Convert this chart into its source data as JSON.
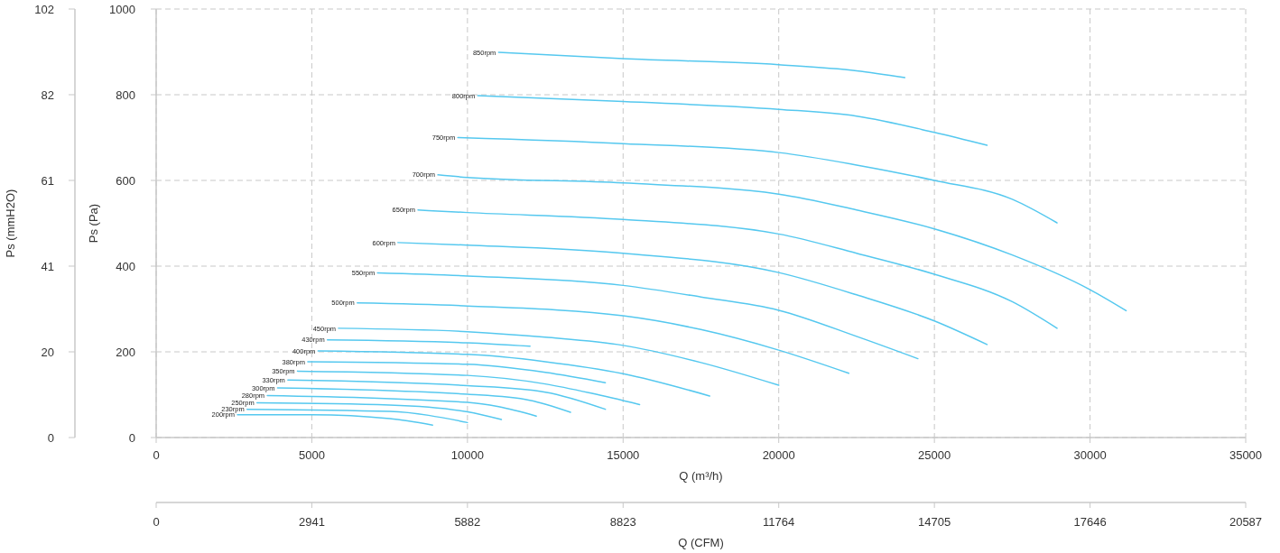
{
  "chart_data": {
    "type": "line",
    "xlabel": "Q (m³/h)",
    "ylabel": "Ps (Pa)",
    "y2label": "Ps (mmH2O)",
    "x2label": "Q (CFM)",
    "xlim": [
      0,
      35000
    ],
    "xticks": [
      0,
      5000,
      10000,
      15000,
      20000,
      25000,
      30000,
      35000
    ],
    "ylim": [
      0,
      1000
    ],
    "yticks": [
      0,
      200,
      400,
      600,
      800,
      1000
    ],
    "y2lim": [
      0,
      101.97
    ],
    "y2ticks": [
      0,
      {
        "value": 20.39,
        "label": "20"
      },
      {
        "value": 40.79,
        "label": "41"
      },
      {
        "value": 61.18,
        "label": "61"
      },
      {
        "value": 81.58,
        "label": "82"
      },
      {
        "value": 101.97,
        "label": "102"
      }
    ],
    "x2lim": [
      0,
      20587
    ],
    "x2ticks": [
      0,
      2941,
      5882,
      8823,
      11764,
      14705,
      17646,
      20587
    ],
    "grid": true,
    "legend": false,
    "marker": "none",
    "line_style": "solid",
    "series": [
      {
        "name": "850rpm",
        "color": "#55c8ef",
        "x": [
          11000,
          15000,
          20000,
          22500,
          24050
        ],
        "values": [
          899,
          884,
          870,
          856,
          840
        ]
      },
      {
        "name": "800rpm",
        "color": "#55c8ef",
        "x": [
          10330,
          15000,
          20000,
          22500,
          25000,
          26690
        ],
        "values": [
          798,
          784,
          766,
          750,
          712,
          682
        ]
      },
      {
        "name": "750rpm",
        "color": "#55c8ef",
        "x": [
          9690,
          15000,
          20000,
          22500,
          25000,
          27500,
          28940
        ],
        "values": [
          700,
          686,
          665,
          636,
          600,
          556,
          501
        ]
      },
      {
        "name": "700rpm",
        "color": "#55c8ef",
        "x": [
          9050,
          10000,
          15000,
          20000,
          22500,
          25000,
          27500,
          30000,
          31160
        ],
        "values": [
          613,
          607,
          594,
          568,
          531,
          487,
          426,
          345,
          296
        ]
      },
      {
        "name": "650rpm",
        "color": "#55c8ef",
        "x": [
          8410,
          10000,
          15000,
          20000,
          22500,
          25000,
          27500,
          28940
        ],
        "values": [
          531,
          525,
          509,
          475,
          430,
          381,
          317,
          255
        ]
      },
      {
        "name": "600rpm",
        "color": "#55c8ef",
        "x": [
          7770,
          10000,
          15000,
          20000,
          22500,
          25000,
          26690
        ],
        "values": [
          455,
          449,
          430,
          385,
          333,
          272,
          217
        ]
      },
      {
        "name": "550rpm",
        "color": "#55c8ef",
        "x": [
          7110,
          10000,
          15000,
          17500,
          20000,
          22500,
          24470
        ],
        "values": [
          384,
          377,
          355,
          328,
          297,
          236,
          184
        ]
      },
      {
        "name": "500rpm",
        "color": "#55c8ef",
        "x": [
          6460,
          10000,
          15000,
          17500,
          20000,
          22250
        ],
        "values": [
          314,
          307,
          284,
          252,
          204,
          150
        ]
      },
      {
        "name": "450rpm",
        "color": "#55c8ef",
        "x": [
          5860,
          10000,
          12500,
          15000,
          17500,
          20000
        ],
        "values": [
          255,
          247,
          234,
          215,
          175,
          122
        ]
      },
      {
        "name": "430rpm",
        "color": "#55c8ef",
        "x": [
          5500,
          10000,
          12010
        ],
        "values": [
          228,
          221,
          213
        ]
      },
      {
        "name": "400rpm",
        "color": "#55c8ef",
        "x": [
          5200,
          10000,
          12500,
          15000,
          17780
        ],
        "values": [
          202,
          194,
          177,
          149,
          97
        ]
      },
      {
        "name": "380rpm",
        "color": "#55c8ef",
        "x": [
          4870,
          10000,
          12500,
          14430
        ],
        "values": [
          177,
          171,
          152,
          128
        ]
      },
      {
        "name": "350rpm",
        "color": "#55c8ef",
        "x": [
          4540,
          10000,
          12500,
          14000,
          15530
        ],
        "values": [
          155,
          145,
          125,
          103,
          77
        ]
      },
      {
        "name": "330rpm",
        "color": "#55c8ef",
        "x": [
          4230,
          10000,
          12500,
          14430
        ],
        "values": [
          134,
          121,
          106,
          66
        ]
      },
      {
        "name": "300rpm",
        "color": "#55c8ef",
        "x": [
          3900,
          10000,
          12000,
          13310
        ],
        "values": [
          116,
          101,
          87,
          59
        ]
      },
      {
        "name": "280rpm",
        "color": "#55c8ef",
        "x": [
          3570,
          10000,
          11000,
          12210
        ],
        "values": [
          98,
          82,
          72,
          50
        ]
      },
      {
        "name": "250rpm",
        "color": "#55c8ef",
        "x": [
          3240,
          7500,
          10000,
          11090
        ],
        "values": [
          81,
          76,
          60,
          42
        ]
      },
      {
        "name": "230rpm",
        "color": "#55c8ef",
        "x": [
          2920,
          7500,
          10000
        ],
        "values": [
          66,
          61,
          35
        ]
      },
      {
        "name": "200rpm",
        "color": "#55c8ef",
        "x": [
          2610,
          5000,
          7500,
          8880
        ],
        "values": [
          53,
          53,
          44,
          29
        ]
      }
    ]
  }
}
